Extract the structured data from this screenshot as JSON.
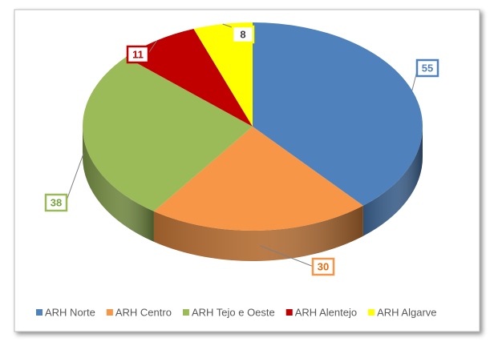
{
  "chart_data": {
    "type": "pie",
    "categories": [
      "ARH Norte",
      "ARH Centro",
      "ARH Tejo e Oeste",
      "ARH Alentejo",
      "ARH Algarve"
    ],
    "values": [
      55,
      30,
      38,
      11,
      8
    ],
    "colors": [
      "#4f81bd",
      "#f79646",
      "#9bbb59",
      "#c00000",
      "#ffff00"
    ],
    "legend": "bottom"
  }
}
